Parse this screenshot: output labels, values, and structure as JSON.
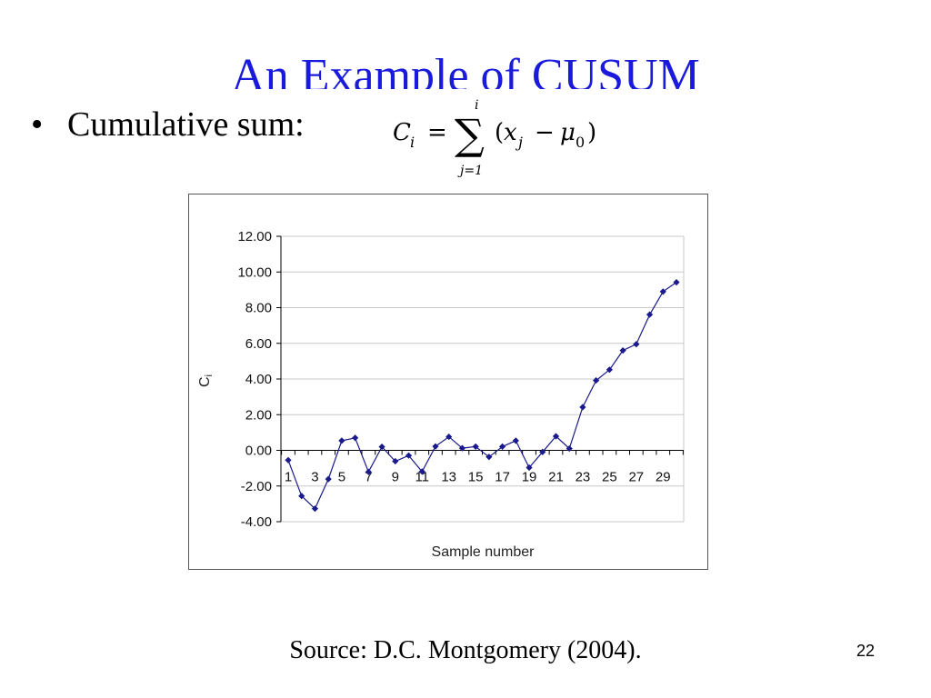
{
  "slide": {
    "title": "An Example of CUSUM",
    "bullet_symbol": "•",
    "bullet_text": "Cumulative sum:",
    "source": "Source: D.C. Montgomery (2004).",
    "page_number": "22"
  },
  "formula": {
    "lhs": "C",
    "lhs_sub": "i",
    "equals": "=",
    "sum_symbol": "∑",
    "upper_limit": "i",
    "lower_limit": "j=1",
    "open_paren": "(",
    "x": "x",
    "x_sub": "j",
    "minus": "−",
    "mu": "μ",
    "mu_sub": "0",
    "close_paren": ")"
  },
  "chart_data": {
    "type": "line",
    "xlabel": "Sample number",
    "ylabel": "Ci",
    "ylim": [
      -4,
      12
    ],
    "yticks": [
      12,
      10,
      8,
      6,
      4,
      2,
      0,
      -2,
      -4
    ],
    "ytick_labels": [
      "12.00",
      "10.00",
      "8.00",
      "6.00",
      "4.00",
      "2.00",
      "0.00",
      "-2.00",
      "-4.00"
    ],
    "xtick_labels": [
      "1",
      "3",
      "5",
      "7",
      "9",
      "11",
      "13",
      "15",
      "17",
      "19",
      "21",
      "23",
      "25",
      "27",
      "29"
    ],
    "grid": "horizontal",
    "line_color": "#1a1a8c",
    "marker": "diamond",
    "x": [
      1,
      2,
      3,
      4,
      5,
      6,
      7,
      8,
      9,
      10,
      11,
      12,
      13,
      14,
      15,
      16,
      17,
      18,
      19,
      20,
      21,
      22,
      23,
      24,
      25,
      26,
      27,
      28,
      29,
      30
    ],
    "values": [
      -0.55,
      -2.56,
      -3.27,
      -1.61,
      0.54,
      0.7,
      -1.21,
      0.2,
      -0.61,
      -0.29,
      -1.19,
      0.22,
      0.76,
      0.12,
      0.21,
      -0.37,
      0.21,
      0.54,
      -0.97,
      -0.09,
      0.79,
      0.1,
      2.42,
      3.92,
      4.52,
      5.6,
      5.95,
      7.61,
      8.9,
      9.42
    ]
  }
}
